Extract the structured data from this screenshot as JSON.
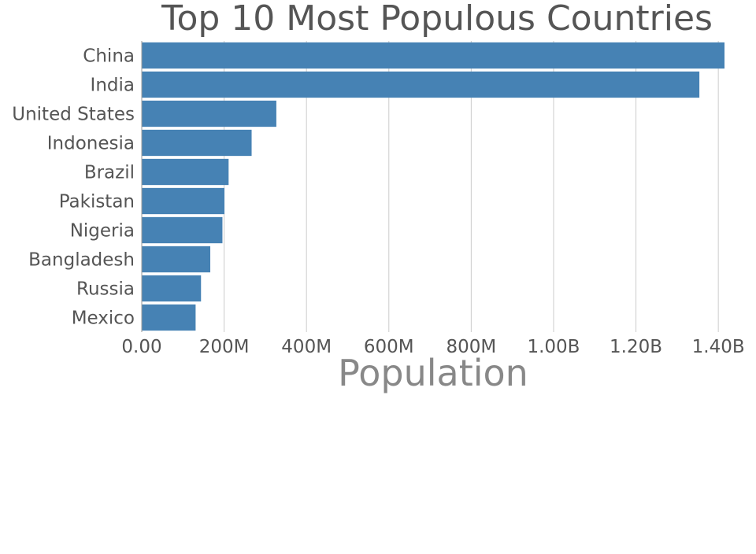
{
  "chart_data": {
    "type": "bar",
    "orientation": "horizontal",
    "title": "Top 10 Most Populous Countries",
    "xlabel": "Population",
    "ylabel": "",
    "categories": [
      "China",
      "India",
      "United States",
      "Indonesia",
      "Brazil",
      "Pakistan",
      "Nigeria",
      "Bangladesh",
      "Russia",
      "Mexico"
    ],
    "values": [
      1415000000,
      1354000000,
      326800000,
      266800000,
      210900000,
      200800000,
      195900000,
      166400000,
      143900000,
      130800000
    ],
    "xlim": [
      0,
      1415000000
    ],
    "x_ticks": [
      0,
      200000000,
      400000000,
      600000000,
      800000000,
      1000000000,
      1200000000,
      1400000000
    ],
    "x_tick_labels": [
      "0.00",
      "200M",
      "400M",
      "600M",
      "800M",
      "1.00B",
      "1.20B",
      "1.40B"
    ],
    "grid": true,
    "bar_color": "#4682b4",
    "title_color": "#555555",
    "tick_color": "#555555",
    "xlabel_color": "#888888",
    "grid_color": "#cccccc",
    "axis_color": "#999999"
  }
}
